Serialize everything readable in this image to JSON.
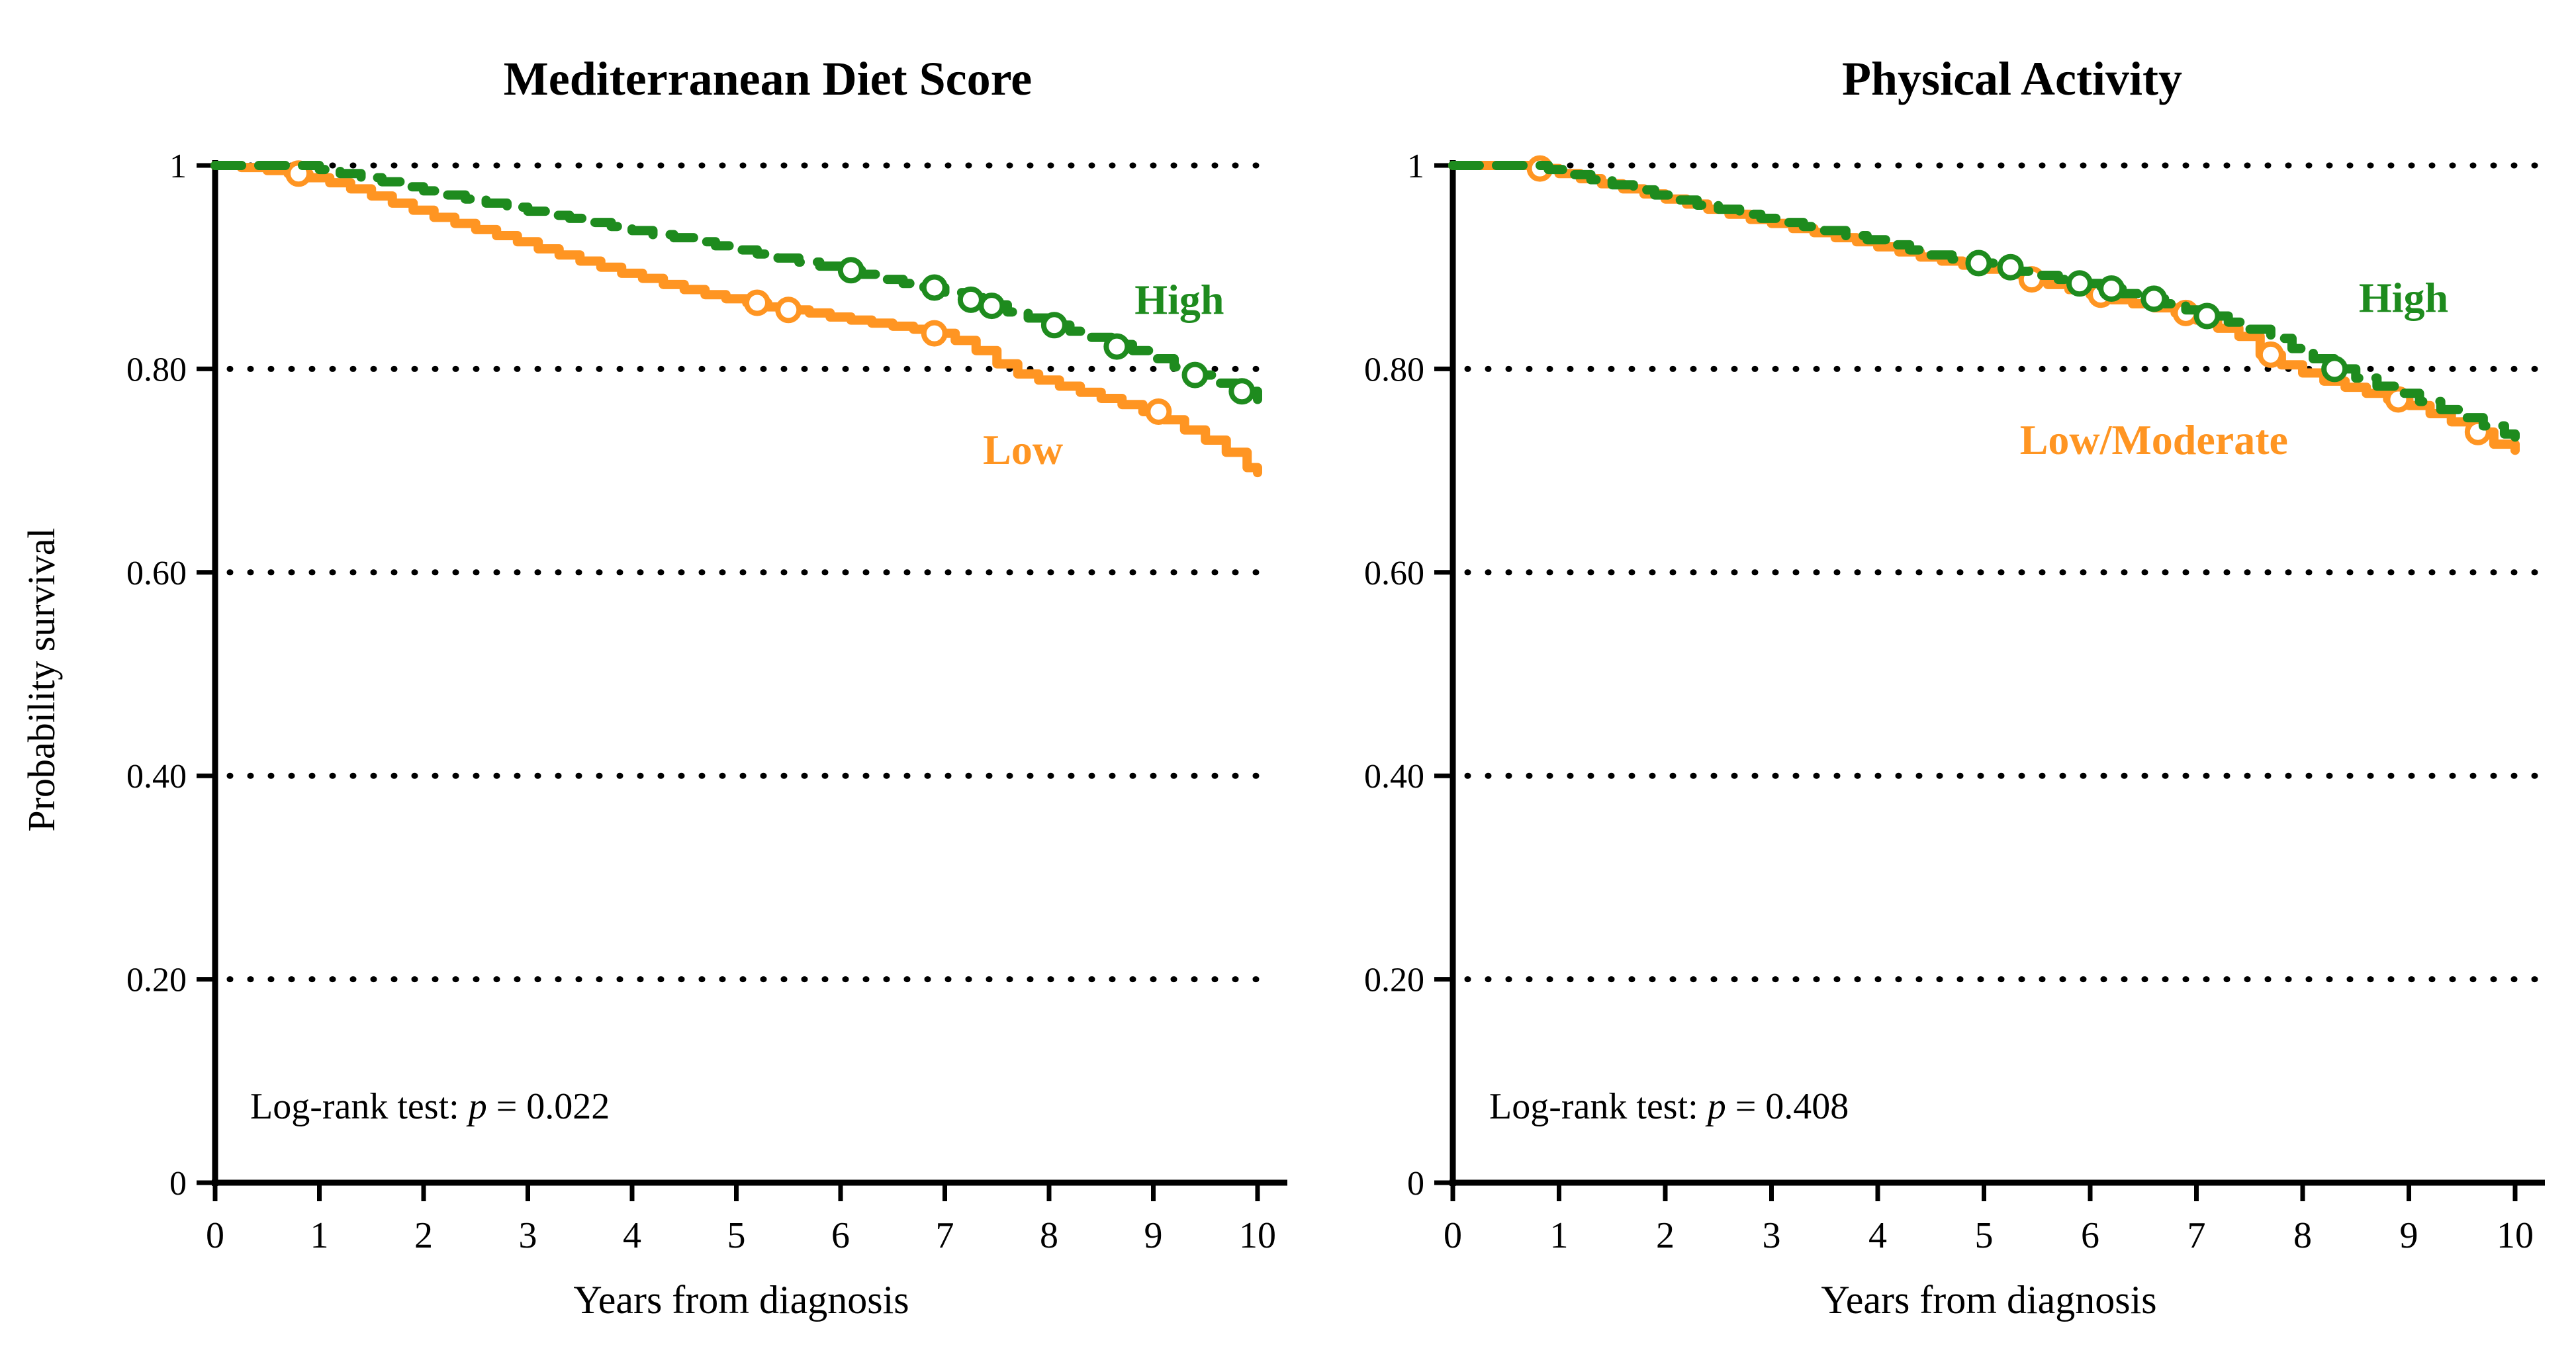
{
  "figure": {
    "ylabel": "Probability survival",
    "background": "#ffffff",
    "gridline_color": "#000000",
    "axis_color": "#000000"
  },
  "chart_data": [
    {
      "type": "line",
      "subtype": "kaplan-meier-step",
      "title": "Mediterranean Diet Score",
      "xlabel": "Years from diagnosis",
      "ylabel": "Probability survival",
      "xlim": [
        0,
        10
      ],
      "ylim": [
        0,
        1
      ],
      "xticks": [
        "0",
        "1",
        "2",
        "3",
        "4",
        "5",
        "6",
        "7",
        "8",
        "9",
        "10"
      ],
      "yticks": [
        {
          "label": "1",
          "value": 1.0
        },
        {
          "label": "0.80",
          "value": 0.8
        },
        {
          "label": "0.60",
          "value": 0.6
        },
        {
          "label": "0.40",
          "value": 0.4
        },
        {
          "label": "0.20",
          "value": 0.2
        },
        {
          "label": "0",
          "value": 0.0
        }
      ],
      "grid": "dotted horizontal lines at 0.20, 0.40, 0.60, 0.80, 1.00",
      "legend_position": "inline labels near curve ends",
      "annotation": {
        "text": "Log-rank test: ",
        "p": "p",
        "value": " = 0.022"
      },
      "series": [
        {
          "name": "High",
          "color": "#1e8b1e",
          "style": "dashed",
          "marker": "open-circle-censor",
          "label_pos": {
            "t": 9.25,
            "s": 0.868
          },
          "points": [
            [
              0,
              1
            ],
            [
              0.9,
              1
            ],
            [
              1,
              0.996
            ],
            [
              1.2,
              0.992
            ],
            [
              1.4,
              0.988
            ],
            [
              1.6,
              0.984
            ],
            [
              1.8,
              0.979
            ],
            [
              2,
              0.975
            ],
            [
              2.2,
              0.971
            ],
            [
              2.4,
              0.967
            ],
            [
              2.6,
              0.963
            ],
            [
              2.8,
              0.959
            ],
            [
              3,
              0.955
            ],
            [
              3.2,
              0.951
            ],
            [
              3.4,
              0.948
            ],
            [
              3.6,
              0.944
            ],
            [
              3.8,
              0.94
            ],
            [
              4,
              0.936
            ],
            [
              4.2,
              0.932
            ],
            [
              4.4,
              0.929
            ],
            [
              4.6,
              0.925
            ],
            [
              4.8,
              0.921
            ],
            [
              5,
              0.917
            ],
            [
              5.2,
              0.913
            ],
            [
              5.4,
              0.909
            ],
            [
              5.6,
              0.905
            ],
            [
              5.8,
              0.901
            ],
            [
              6,
              0.897
            ],
            [
              6.2,
              0.893
            ],
            [
              6.4,
              0.888
            ],
            [
              6.6,
              0.884
            ],
            [
              6.8,
              0.88
            ],
            [
              7,
              0.875
            ],
            [
              7.2,
              0.87
            ],
            [
              7.4,
              0.863
            ],
            [
              7.6,
              0.856
            ],
            [
              7.8,
              0.85
            ],
            [
              8,
              0.843
            ],
            [
              8.2,
              0.837
            ],
            [
              8.4,
              0.831
            ],
            [
              8.6,
              0.824
            ],
            [
              8.8,
              0.818
            ],
            [
              9,
              0.81
            ],
            [
              9.2,
              0.802
            ],
            [
              9.4,
              0.794
            ],
            [
              9.6,
              0.786
            ],
            [
              9.8,
              0.778
            ],
            [
              10,
              0.77
            ]
          ],
          "censor_marks": [
            [
              6.1,
              0.897
            ],
            [
              6.9,
              0.88
            ],
            [
              7.25,
              0.868
            ],
            [
              7.45,
              0.862
            ],
            [
              8.05,
              0.843
            ],
            [
              8.65,
              0.822
            ],
            [
              9.4,
              0.794
            ],
            [
              9.85,
              0.778
            ]
          ]
        },
        {
          "name": "Low",
          "color": "#ff9522",
          "style": "solid",
          "marker": "open-circle-censor",
          "label_pos": {
            "t": 7.75,
            "s": 0.72
          },
          "points": [
            [
              0,
              1
            ],
            [
              0.25,
              0.998
            ],
            [
              0.5,
              0.995
            ],
            [
              0.7,
              0.992
            ],
            [
              0.9,
              0.988
            ],
            [
              1.1,
              0.983
            ],
            [
              1.3,
              0.977
            ],
            [
              1.5,
              0.97
            ],
            [
              1.7,
              0.963
            ],
            [
              1.9,
              0.956
            ],
            [
              2.1,
              0.949
            ],
            [
              2.3,
              0.943
            ],
            [
              2.5,
              0.937
            ],
            [
              2.7,
              0.931
            ],
            [
              2.9,
              0.925
            ],
            [
              3.1,
              0.918
            ],
            [
              3.3,
              0.912
            ],
            [
              3.5,
              0.906
            ],
            [
              3.7,
              0.9
            ],
            [
              3.9,
              0.894
            ],
            [
              4.1,
              0.889
            ],
            [
              4.3,
              0.883
            ],
            [
              4.5,
              0.878
            ],
            [
              4.7,
              0.873
            ],
            [
              4.9,
              0.869
            ],
            [
              5.1,
              0.865
            ],
            [
              5.3,
              0.861
            ],
            [
              5.5,
              0.858
            ],
            [
              5.7,
              0.855
            ],
            [
              5.9,
              0.851
            ],
            [
              6.1,
              0.848
            ],
            [
              6.3,
              0.845
            ],
            [
              6.5,
              0.842
            ],
            [
              6.7,
              0.839
            ],
            [
              6.9,
              0.835
            ],
            [
              7.1,
              0.828
            ],
            [
              7.3,
              0.818
            ],
            [
              7.5,
              0.805
            ],
            [
              7.7,
              0.795
            ],
            [
              7.9,
              0.789
            ],
            [
              8.1,
              0.783
            ],
            [
              8.3,
              0.777
            ],
            [
              8.5,
              0.771
            ],
            [
              8.7,
              0.765
            ],
            [
              8.9,
              0.758
            ],
            [
              9.1,
              0.75
            ],
            [
              9.3,
              0.74
            ],
            [
              9.5,
              0.73
            ],
            [
              9.7,
              0.718
            ],
            [
              9.9,
              0.703
            ],
            [
              10,
              0.698
            ]
          ],
          "censor_marks": [
            [
              0.8,
              0.992
            ],
            [
              5.2,
              0.865
            ],
            [
              5.5,
              0.858
            ],
            [
              6.9,
              0.835
            ],
            [
              9.05,
              0.758
            ]
          ]
        }
      ]
    },
    {
      "type": "line",
      "subtype": "kaplan-meier-step",
      "title": "Physical Activity",
      "xlabel": "Years from diagnosis",
      "ylabel": "Probability survival",
      "xlim": [
        0,
        10
      ],
      "ylim": [
        0,
        1
      ],
      "xticks": [
        "0",
        "1",
        "2",
        "3",
        "4",
        "5",
        "6",
        "7",
        "8",
        "9",
        "10"
      ],
      "yticks": [
        {
          "label": "1",
          "value": 1.0
        },
        {
          "label": "0.80",
          "value": 0.8
        },
        {
          "label": "0.60",
          "value": 0.6
        },
        {
          "label": "0.40",
          "value": 0.4
        },
        {
          "label": "0.20",
          "value": 0.2
        },
        {
          "label": "0",
          "value": 0.0
        }
      ],
      "grid": "dotted horizontal lines at 0.20, 0.40, 0.60, 0.80, 1.00",
      "legend_position": "inline labels near curve ends",
      "annotation": {
        "text": "Log-rank test: ",
        "p": "p",
        "value": " = 0.408"
      },
      "series": [
        {
          "name": "High",
          "color": "#1e8b1e",
          "style": "dashed",
          "marker": "open-circle-censor",
          "label_pos": {
            "t": 8.95,
            "s": 0.87
          },
          "points": [
            [
              0,
              1
            ],
            [
              0.7,
              1
            ],
            [
              0.9,
              0.996
            ],
            [
              1.1,
              0.991
            ],
            [
              1.3,
              0.986
            ],
            [
              1.5,
              0.981
            ],
            [
              1.7,
              0.976
            ],
            [
              1.9,
              0.971
            ],
            [
              2.1,
              0.966
            ],
            [
              2.3,
              0.961
            ],
            [
              2.5,
              0.957
            ],
            [
              2.7,
              0.952
            ],
            [
              2.9,
              0.948
            ],
            [
              3.1,
              0.944
            ],
            [
              3.3,
              0.94
            ],
            [
              3.5,
              0.936
            ],
            [
              3.7,
              0.931
            ],
            [
              3.9,
              0.927
            ],
            [
              4.1,
              0.922
            ],
            [
              4.3,
              0.917
            ],
            [
              4.5,
              0.912
            ],
            [
              4.7,
              0.908
            ],
            [
              4.9,
              0.904
            ],
            [
              5.1,
              0.9
            ],
            [
              5.3,
              0.896
            ],
            [
              5.5,
              0.892
            ],
            [
              5.7,
              0.888
            ],
            [
              5.9,
              0.884
            ],
            [
              6.1,
              0.879
            ],
            [
              6.3,
              0.874
            ],
            [
              6.5,
              0.869
            ],
            [
              6.7,
              0.864
            ],
            [
              6.9,
              0.858
            ],
            [
              7.1,
              0.852
            ],
            [
              7.3,
              0.846
            ],
            [
              7.5,
              0.839
            ],
            [
              7.7,
              0.83
            ],
            [
              7.9,
              0.82
            ],
            [
              8.1,
              0.81
            ],
            [
              8.3,
              0.8
            ],
            [
              8.5,
              0.791
            ],
            [
              8.7,
              0.783
            ],
            [
              8.9,
              0.776
            ],
            [
              9.1,
              0.768
            ],
            [
              9.3,
              0.76
            ],
            [
              9.5,
              0.752
            ],
            [
              9.7,
              0.744
            ],
            [
              9.9,
              0.736
            ],
            [
              10,
              0.733
            ]
          ],
          "censor_marks": [
            [
              4.95,
              0.904
            ],
            [
              5.25,
              0.9
            ],
            [
              5.9,
              0.884
            ],
            [
              6.2,
              0.879
            ],
            [
              6.6,
              0.869
            ],
            [
              7.1,
              0.852
            ],
            [
              8.3,
              0.8
            ]
          ]
        },
        {
          "name": "Low/Moderate",
          "color": "#ff9522",
          "style": "solid",
          "marker": "open-circle-censor",
          "label_pos": {
            "t": 6.6,
            "s": 0.73
          },
          "points": [
            [
              0,
              1
            ],
            [
              0.6,
              1
            ],
            [
              0.8,
              0.997
            ],
            [
              1,
              0.992
            ],
            [
              1.2,
              0.987
            ],
            [
              1.4,
              0.982
            ],
            [
              1.6,
              0.977
            ],
            [
              1.8,
              0.972
            ],
            [
              2,
              0.967
            ],
            [
              2.2,
              0.962
            ],
            [
              2.4,
              0.957
            ],
            [
              2.6,
              0.952
            ],
            [
              2.8,
              0.947
            ],
            [
              3,
              0.943
            ],
            [
              3.2,
              0.938
            ],
            [
              3.4,
              0.934
            ],
            [
              3.6,
              0.929
            ],
            [
              3.8,
              0.925
            ],
            [
              4,
              0.92
            ],
            [
              4.2,
              0.915
            ],
            [
              4.4,
              0.91
            ],
            [
              4.6,
              0.906
            ],
            [
              4.8,
              0.902
            ],
            [
              5,
              0.898
            ],
            [
              5.2,
              0.893
            ],
            [
              5.4,
              0.888
            ],
            [
              5.6,
              0.883
            ],
            [
              5.8,
              0.878
            ],
            [
              6,
              0.873
            ],
            [
              6.2,
              0.868
            ],
            [
              6.4,
              0.864
            ],
            [
              6.6,
              0.86
            ],
            [
              6.8,
              0.855
            ],
            [
              7,
              0.848
            ],
            [
              7.2,
              0.84
            ],
            [
              7.4,
              0.832
            ],
            [
              7.6,
              0.814
            ],
            [
              7.8,
              0.804
            ],
            [
              8,
              0.796
            ],
            [
              8.2,
              0.788
            ],
            [
              8.4,
              0.782
            ],
            [
              8.6,
              0.776
            ],
            [
              8.8,
              0.77
            ],
            [
              9,
              0.764
            ],
            [
              9.2,
              0.756
            ],
            [
              9.4,
              0.748
            ],
            [
              9.6,
              0.738
            ],
            [
              9.8,
              0.726
            ],
            [
              10,
              0.72
            ]
          ],
          "censor_marks": [
            [
              0.82,
              0.997
            ],
            [
              5.45,
              0.888
            ],
            [
              6.1,
              0.873
            ],
            [
              6.9,
              0.855
            ],
            [
              7.7,
              0.814
            ],
            [
              8.9,
              0.77
            ],
            [
              9.65,
              0.738
            ]
          ]
        }
      ]
    }
  ]
}
